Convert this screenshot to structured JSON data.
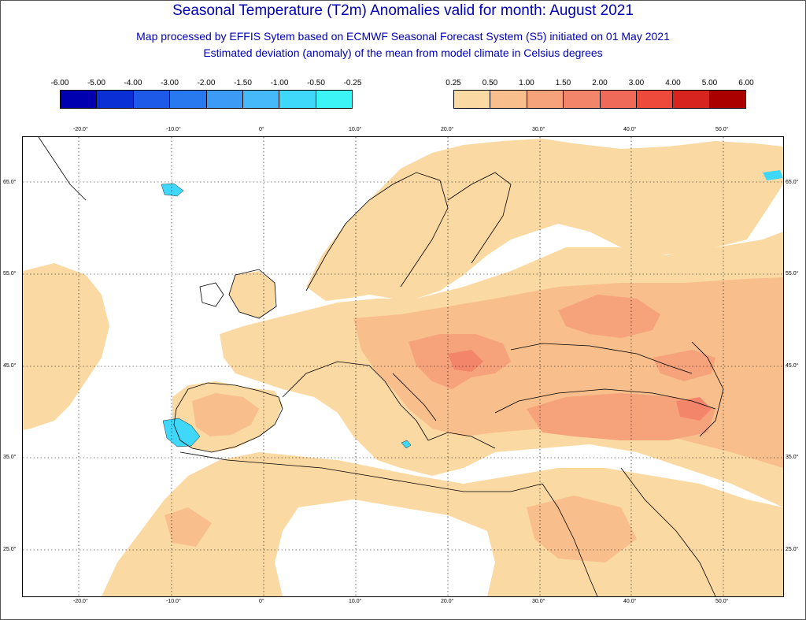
{
  "header": {
    "title": "Seasonal Temperature (T2m) Anomalies valid for month: August 2021",
    "subtitle_line1": "Map processed by EFFIS Sytem based on ECMWF Seasonal Forecast System (S5) initiated on 01 May 2021",
    "subtitle_line2": "Estimated deviation (anomaly) of the mean from model climate in Celsius degrees"
  },
  "legend_negative": {
    "labels": [
      "-6.00",
      "-5.00",
      "-4.00",
      "-3.00",
      "-2.00",
      "-1.50",
      "-1.00",
      "-0.50",
      "-0.25"
    ],
    "colors": [
      "#0000b0",
      "#0a2fd4",
      "#1e5ae8",
      "#2878f0",
      "#3c9bf5",
      "#46b9fa",
      "#3fd7fa",
      "#3cf3f5"
    ]
  },
  "legend_positive": {
    "labels": [
      "0.25",
      "0.50",
      "1.00",
      "1.50",
      "2.00",
      "3.00",
      "4.00",
      "5.00",
      "6.00"
    ],
    "colors": [
      "#fbd9a3",
      "#f8be8c",
      "#f6a27a",
      "#f3866a",
      "#ef6a58",
      "#ed4a3c",
      "#d7241e",
      "#aa0000"
    ]
  },
  "map": {
    "lon_labels": [
      "-20.0°",
      "-10.0°",
      "0°",
      "10.0°",
      "20.0°",
      "30.0°",
      "40.0°",
      "50.0°"
    ],
    "lat_labels": [
      "65.0°",
      "55.0°",
      "45.0°",
      "35.0°",
      "25.0°"
    ],
    "colors": {
      "ocean": "#ffffff",
      "anom_025": "#fbd9a3",
      "anom_050": "#f8be8c",
      "anom_100": "#f6a27a",
      "anom_150": "#f3866a",
      "cold_m050": "#3cf3f5",
      "cold_m100": "#3fd7fa",
      "coast": "#000000"
    }
  }
}
